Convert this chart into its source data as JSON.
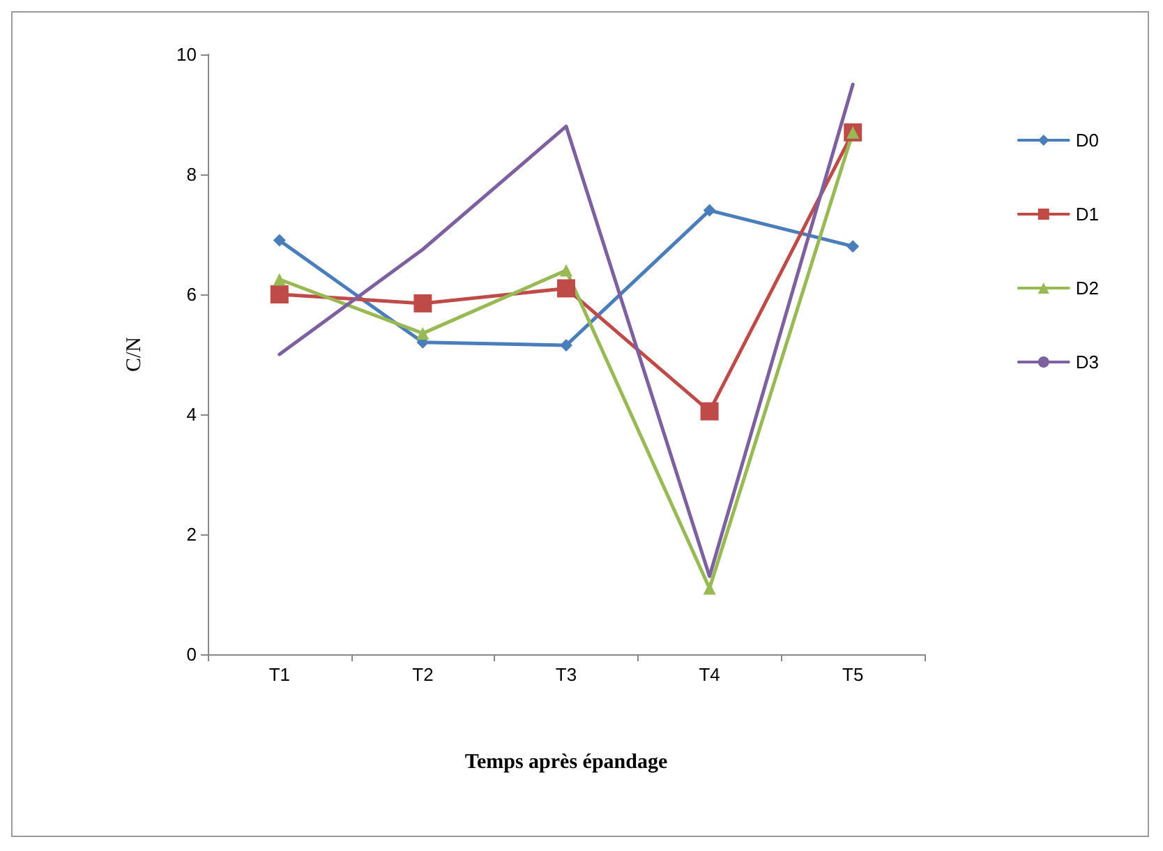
{
  "chart_data": {
    "type": "line",
    "xlabel": "Temps après épandage",
    "ylabel": "C/N",
    "categories": [
      "T1",
      "T2",
      "T3",
      "T4",
      "T5"
    ],
    "ylim": [
      0,
      10
    ],
    "yticks": [
      0,
      2,
      4,
      6,
      8,
      10
    ],
    "grid": false,
    "legend": "right",
    "series": [
      {
        "name": "D0",
        "color": "#4a7ebb",
        "marker": "diamond",
        "values": [
          6.9,
          5.2,
          5.15,
          7.4,
          6.8
        ]
      },
      {
        "name": "D1",
        "color": "#be4b48",
        "marker": "square",
        "values": [
          6.0,
          5.85,
          6.1,
          4.05,
          8.7
        ]
      },
      {
        "name": "D2",
        "color": "#98b954",
        "marker": "triangle",
        "values": [
          6.25,
          5.35,
          6.4,
          1.1,
          8.7
        ]
      },
      {
        "name": "D3",
        "color": "#7d60a0",
        "marker": "none",
        "values": [
          5.0,
          6.75,
          8.8,
          1.3,
          9.5
        ]
      }
    ]
  }
}
